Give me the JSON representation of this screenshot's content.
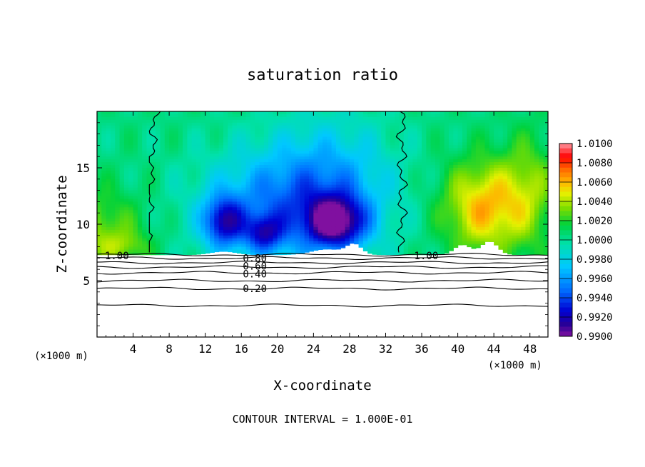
{
  "chart_data": {
    "type": "heatmap",
    "title": "saturation ratio",
    "xlabel": "X-coordinate",
    "ylabel": "Z-coordinate",
    "x_unit_left": "(×1000 m)",
    "x_unit_right": "(×1000 m)",
    "xlim": [
      0,
      50
    ],
    "ylim": [
      0,
      20
    ],
    "x_ticks": [
      4,
      8,
      12,
      16,
      20,
      24,
      28,
      32,
      36,
      40,
      44,
      48
    ],
    "y_ticks": [
      5,
      10,
      15
    ],
    "colorbar": {
      "levels": [
        "1.0100",
        "1.0080",
        "1.0060",
        "1.0040",
        "1.0020",
        "1.0000",
        "0.9980",
        "0.9960",
        "0.9940",
        "0.9920",
        "0.9900"
      ],
      "range": [
        0.99,
        1.01
      ]
    },
    "contour_labels": [
      {
        "text": "1.00",
        "x": 2.2,
        "z": 7.2
      },
      {
        "text": "0.80",
        "x": 17.5,
        "z": 7.0
      },
      {
        "text": "0.60",
        "x": 17.5,
        "z": 6.3
      },
      {
        "text": "0.40",
        "x": 17.5,
        "z": 5.6
      },
      {
        "text": "0.20",
        "x": 17.5,
        "z": 4.3
      },
      {
        "text": "1.00",
        "x": 36.5,
        "z": 7.2
      }
    ],
    "footer": "CONTOUR INTERVAL = 1.000E-01"
  }
}
